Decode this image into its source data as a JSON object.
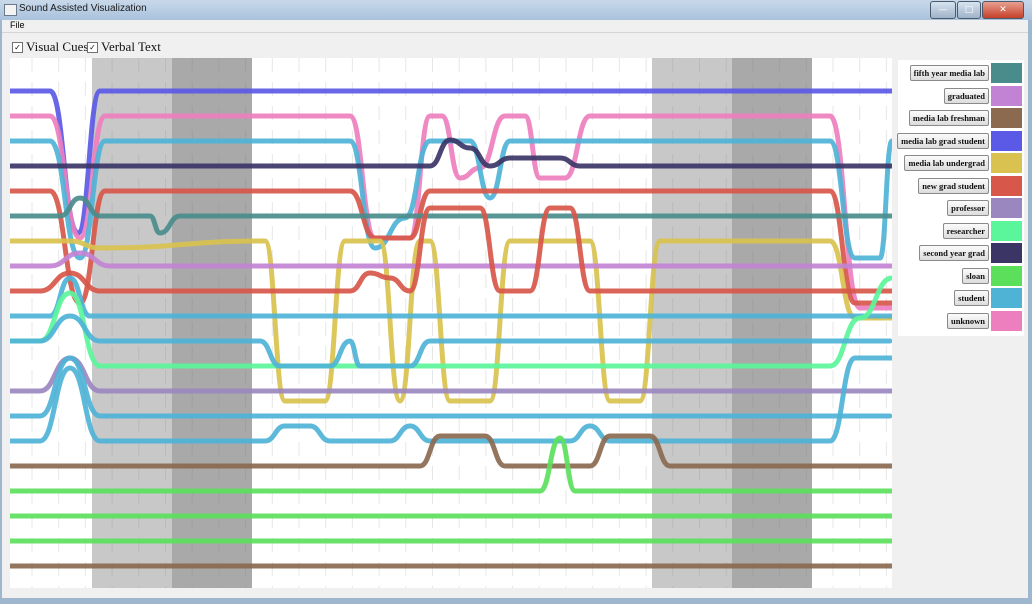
{
  "window": {
    "title": "Sound Assisted Visualization"
  },
  "menu": {
    "file": "File"
  },
  "toolbar": {
    "visual_cues": "Visual Cues",
    "verbal_text": "Verbal Text"
  },
  "legend": [
    {
      "label": "fifth year media lab",
      "color": "#4a8c8c"
    },
    {
      "label": "graduated",
      "color": "#c383d4"
    },
    {
      "label": "media lab freshman",
      "color": "#8b6a50"
    },
    {
      "label": "media lab grad student",
      "color": "#5a5ae6"
    },
    {
      "label": "media lab undergrad",
      "color": "#d9c24f"
    },
    {
      "label": "new grad student",
      "color": "#d7574a"
    },
    {
      "label": "professor",
      "color": "#9b87bf"
    },
    {
      "label": "researcher",
      "color": "#5bf59b"
    },
    {
      "label": "second year grad",
      "color": "#3b3566"
    },
    {
      "label": "sloan",
      "color": "#5ce05c"
    },
    {
      "label": "student",
      "color": "#4fb3d6"
    },
    {
      "label": "unknown",
      "color": "#ee7fbf"
    }
  ]
}
